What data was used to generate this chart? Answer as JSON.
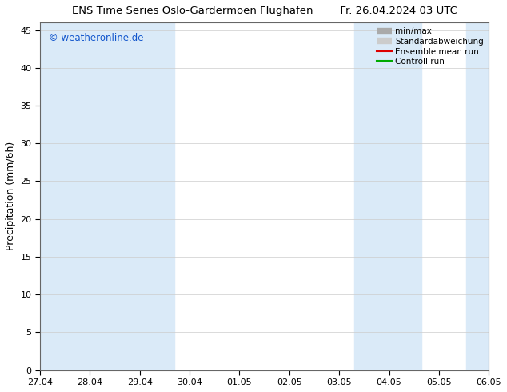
{
  "title": "ENS Time Series Oslo-Gardermoen Flughafen",
  "title_right": "Fr. 26.04.2024 03 UTC",
  "ylabel": "Precipitation (mm/6h)",
  "watermark": "© weatheronline.de",
  "xlim": [
    0,
    10
  ],
  "ylim": [
    0,
    46
  ],
  "yticks": [
    0,
    5,
    10,
    15,
    20,
    25,
    30,
    35,
    40,
    45
  ],
  "xtick_labels": [
    "27.04",
    "28.04",
    "29.04",
    "30.04",
    "01.05",
    "02.05",
    "03.05",
    "04.05",
    "05.05",
    "06.05"
  ],
  "background_color": "#ffffff",
  "plot_bg_color": "#ffffff",
  "band_color": "#daeaf8",
  "legend_entries": [
    "min/max",
    "Standardabweichung",
    "Ensemble mean run",
    "Controll run"
  ],
  "legend_line_colors": [
    "#cc0000",
    "#009900"
  ],
  "shaded_bands": [
    [
      0.0,
      2.0
    ],
    [
      2.0,
      3.0
    ],
    [
      7.0,
      8.5
    ],
    [
      9.5,
      10.0
    ]
  ]
}
